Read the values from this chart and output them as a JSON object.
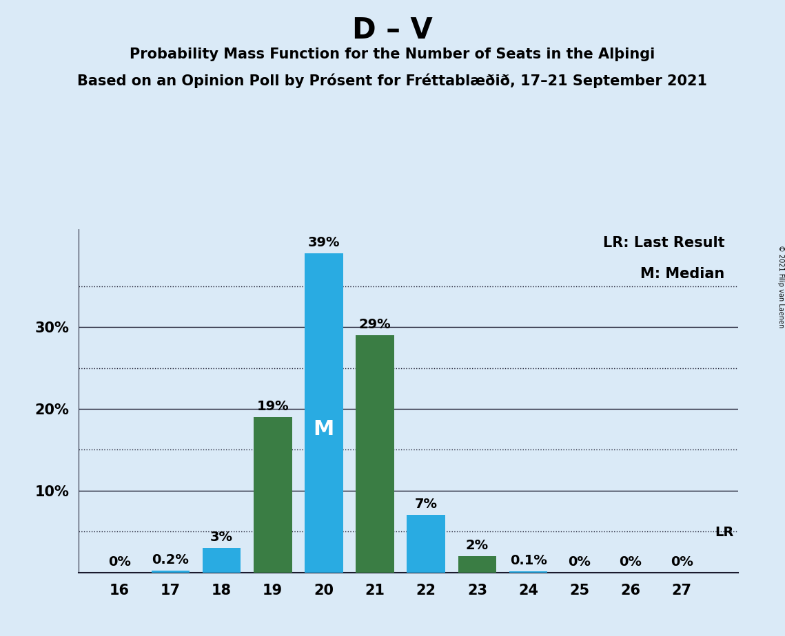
{
  "title": "D – V",
  "subtitle1": "Probability Mass Function for the Number of Seats in the Alþingi",
  "subtitle2": "Based on an Opinion Poll by Prósent for Fréttablæðið, 17–21 September 2021",
  "copyright": "© 2021 Filip van Laenen",
  "seats": [
    16,
    17,
    18,
    19,
    20,
    21,
    22,
    23,
    24,
    25,
    26,
    27
  ],
  "pmf_values": [
    0.0,
    0.2,
    3.0,
    19.0,
    39.0,
    29.0,
    7.0,
    2.0,
    0.1,
    0.0,
    0.0,
    0.0
  ],
  "pmf_labels": [
    "0%",
    "0.2%",
    "3%",
    "19%",
    "39%",
    "29%",
    "7%",
    "2%",
    "0.1%",
    "0%",
    "0%",
    "0%"
  ],
  "bar_colors": [
    "#29abe2",
    "#29abe2",
    "#29abe2",
    "#3a7d44",
    "#29abe2",
    "#3a7d44",
    "#29abe2",
    "#3a7d44",
    "#29abe2",
    "#29abe2",
    "#29abe2",
    "#29abe2"
  ],
  "median_seat": 20,
  "lr_y": 5.0,
  "background_color": "#daeaf7",
  "ytick_major": [
    10,
    20,
    30
  ],
  "ytick_minor_dotted": [
    5,
    15,
    25,
    35
  ],
  "ylim": [
    0,
    42
  ],
  "xlim_left": 15.2,
  "xlim_right": 28.1,
  "bar_width": 0.75,
  "title_fontsize": 30,
  "subtitle_fontsize": 15,
  "label_fontsize": 14,
  "tick_fontsize": 15,
  "legend_fontsize": 15,
  "median_label_fontsize": 22
}
